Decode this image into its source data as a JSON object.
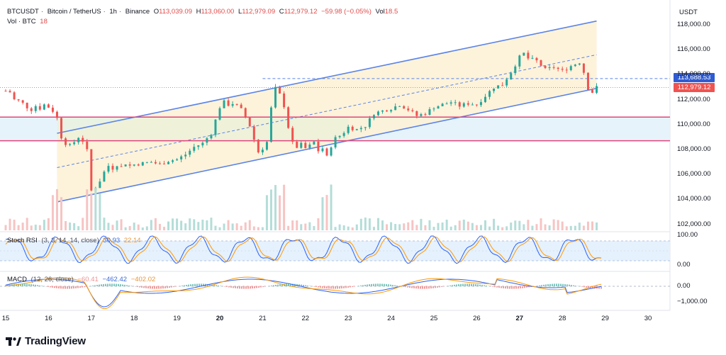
{
  "header": {
    "symbol": "BTCUSDT",
    "description": "Bitcoin / TetherUS",
    "interval": "1h",
    "exchange": "Binance",
    "open_label": "O",
    "open": "113,039.09",
    "high_label": "H",
    "high": "113,060.00",
    "low_label": "L",
    "low": "112,979.09",
    "close_label": "C",
    "close": "112,979.12",
    "change": "−59.98 (−0.05%)",
    "vol_label": "Vol",
    "vol": "18.5"
  },
  "volume_legend": {
    "label": "Vol · BTC",
    "value": "18"
  },
  "price_axis": {
    "currency": "USDT",
    "ticks": [
      "118,000.00",
      "116,000.00",
      "114,000.00",
      "112,000.00",
      "110,000.00",
      "108,000.00",
      "106,000.00",
      "104,000.00",
      "102,000.00"
    ],
    "tick_values": [
      118000,
      116000,
      114000,
      112000,
      110000,
      108000,
      106000,
      104000,
      102000
    ],
    "last_price_tag": "112,979.12",
    "alert_price_tag": "113,688.53"
  },
  "stoch_rsi": {
    "label": "Stoch RSI",
    "params": "(3, 3, 14, 14, close)",
    "k_value": "30.93",
    "d_value": "22.14",
    "ticks": [
      "100.00",
      "0.00"
    ]
  },
  "macd": {
    "label": "MACD",
    "params": "(12, 26, close)",
    "hist_value": "−60.41",
    "macd_value": "−462.42",
    "signal_value": "−402.02",
    "ticks": [
      "0.00",
      "−1,000.00"
    ]
  },
  "time_axis": {
    "labels": [
      "15",
      "16",
      "17",
      "18",
      "19",
      "20",
      "21",
      "22",
      "23",
      "24",
      "25",
      "26",
      "27",
      "28",
      "29",
      "30"
    ],
    "bold": [
      "20",
      "27"
    ]
  },
  "colors": {
    "up": "#26a69a",
    "down": "#ef5350",
    "channel_line": "#5b84e8",
    "channel_fill": "#fdf1d3",
    "zone_fill": "#e6f3fb",
    "zone_line": "#e0457b",
    "last_price_tag": "#ef5350",
    "alert_tag": "#2f5bd2",
    "stoch_k": "#2962ff",
    "stoch_d": "#ff9800",
    "stoch_band": "#e5f1fc",
    "macd_line": "#2962ff",
    "signal_line": "#ff9800"
  },
  "brand": {
    "name": "TradingView"
  },
  "chart_data": {
    "type": "candlestick",
    "x_unit": "hour index from Aug 15",
    "ylim": [
      101500,
      118500
    ],
    "resistance_zone": [
      108700,
      110600
    ],
    "channel": {
      "upper": [
        [
          16.2,
          109300
        ],
        [
          28.8,
          118300
        ]
      ],
      "lower": [
        [
          16.2,
          103800
        ],
        [
          28.8,
          112900
        ]
      ]
    },
    "closes": [
      [
        15.0,
        112700
      ],
      [
        15.1,
        112600
      ],
      [
        15.2,
        112000
      ],
      [
        15.3,
        111900
      ],
      [
        15.4,
        111700
      ],
      [
        15.5,
        111400
      ],
      [
        15.6,
        111200
      ],
      [
        15.7,
        111500
      ],
      [
        15.8,
        111300
      ],
      [
        15.9,
        111600
      ],
      [
        16.0,
        111400
      ],
      [
        16.1,
        111100
      ],
      [
        16.2,
        110500
      ],
      [
        16.3,
        109000
      ],
      [
        16.4,
        108500
      ],
      [
        16.5,
        108300
      ],
      [
        16.6,
        108600
      ],
      [
        16.7,
        109000
      ],
      [
        16.8,
        108700
      ],
      [
        16.9,
        107900
      ],
      [
        17.0,
        104700
      ],
      [
        17.1,
        105000
      ],
      [
        17.2,
        105500
      ],
      [
        17.3,
        106200
      ],
      [
        17.4,
        106700
      ],
      [
        17.5,
        106500
      ],
      [
        17.6,
        106800
      ],
      [
        17.7,
        106600
      ],
      [
        17.8,
        106900
      ],
      [
        17.9,
        106700
      ],
      [
        18.0,
        106800
      ],
      [
        18.2,
        106900
      ],
      [
        18.4,
        107000
      ],
      [
        18.6,
        106800
      ],
      [
        18.8,
        107100
      ],
      [
        19.0,
        107200
      ],
      [
        19.2,
        107600
      ],
      [
        19.4,
        108200
      ],
      [
        19.6,
        108500
      ],
      [
        19.8,
        109300
      ],
      [
        20.0,
        111400
      ],
      [
        20.1,
        111800
      ],
      [
        20.2,
        111600
      ],
      [
        20.3,
        111700
      ],
      [
        20.4,
        111500
      ],
      [
        20.5,
        111200
      ],
      [
        20.6,
        110600
      ],
      [
        20.7,
        109900
      ],
      [
        20.8,
        108800
      ],
      [
        20.9,
        107800
      ],
      [
        21.0,
        108100
      ],
      [
        21.1,
        108600
      ],
      [
        21.2,
        111300
      ],
      [
        21.3,
        112900
      ],
      [
        21.4,
        112400
      ],
      [
        21.5,
        111500
      ],
      [
        21.6,
        109800
      ],
      [
        21.7,
        108500
      ],
      [
        21.8,
        108200
      ],
      [
        21.9,
        108400
      ],
      [
        22.0,
        108100
      ],
      [
        22.1,
        108300
      ],
      [
        22.2,
        108600
      ],
      [
        22.3,
        107900
      ],
      [
        22.4,
        108100
      ],
      [
        22.5,
        107400
      ],
      [
        22.6,
        108300
      ],
      [
        22.7,
        108900
      ],
      [
        22.8,
        109100
      ],
      [
        22.9,
        109400
      ],
      [
        23.0,
        109800
      ],
      [
        23.2,
        109600
      ],
      [
        23.4,
        109900
      ],
      [
        23.6,
        110900
      ],
      [
        23.8,
        111100
      ],
      [
        24.0,
        111300
      ],
      [
        24.2,
        111600
      ],
      [
        24.4,
        111200
      ],
      [
        24.6,
        110700
      ],
      [
        24.8,
        110900
      ],
      [
        25.0,
        111400
      ],
      [
        25.2,
        111600
      ],
      [
        25.4,
        111800
      ],
      [
        25.6,
        111500
      ],
      [
        25.8,
        111700
      ],
      [
        26.0,
        111600
      ],
      [
        26.2,
        112300
      ],
      [
        26.4,
        113000
      ],
      [
        26.6,
        113200
      ],
      [
        26.8,
        114200
      ],
      [
        27.0,
        115400
      ],
      [
        27.1,
        115700
      ],
      [
        27.2,
        115300
      ],
      [
        27.4,
        115100
      ],
      [
        27.6,
        114400
      ],
      [
        27.8,
        114600
      ],
      [
        28.0,
        114300
      ],
      [
        28.2,
        114700
      ],
      [
        28.4,
        115000
      ],
      [
        28.5,
        114200
      ],
      [
        28.6,
        112900
      ],
      [
        28.7,
        112600
      ],
      [
        28.8,
        112979
      ]
    ]
  }
}
